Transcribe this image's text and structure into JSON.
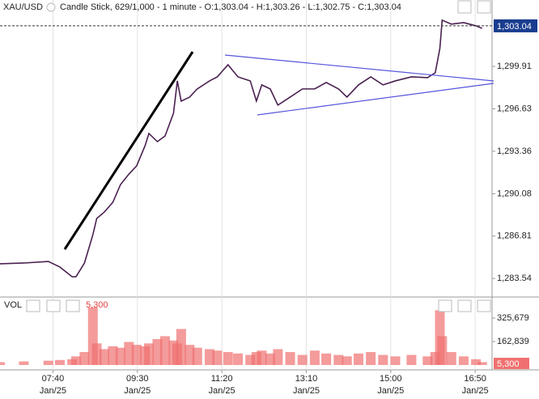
{
  "chart_data": [
    {
      "type": "line",
      "title": "XAU/USD",
      "subtitle": "Candle Stick, 629/1,000 - 1 minute - O:1,303.04 - H:1,303.26 - L:1,302.75 - C:1,303.04",
      "color": "#4a2050",
      "x": [
        391,
        422,
        454,
        469,
        485,
        490,
        501,
        512,
        517,
        527,
        538,
        548,
        559,
        569,
        580,
        585,
        596,
        606,
        617,
        622,
        627,
        638,
        648,
        664,
        674,
        688,
        701,
        717,
        725,
        732,
        743,
        753,
        769,
        785,
        801,
        816,
        832,
        843,
        858,
        874,
        890,
        906,
        927,
        948,
        958,
        964,
        967,
        979,
        995,
        1011,
        1019
      ],
      "values": [
        1284.67,
        1284.73,
        1284.85,
        1284.42,
        1283.67,
        1283.67,
        1284.73,
        1286.92,
        1288.17,
        1288.67,
        1289.42,
        1290.79,
        1291.6,
        1292.23,
        1293.79,
        1294.73,
        1294.1,
        1294.54,
        1296.29,
        1298.79,
        1297.23,
        1297.54,
        1298.17,
        1298.79,
        1299.1,
        1300.04,
        1299.1,
        1298.79,
        1297.23,
        1298.48,
        1298.17,
        1296.92,
        1297.54,
        1298.17,
        1298.17,
        1298.67,
        1298.17,
        1297.54,
        1298.48,
        1299.1,
        1298.48,
        1298.79,
        1299.1,
        1299.04,
        1299.42,
        1301.29,
        1303.48,
        1303.17,
        1303.29,
        1303.04,
        1302.85
      ],
      "xlim": [
        391,
        1032
      ],
      "ylim": [
        1282.23,
        1303.91
      ],
      "yticks": [
        {
          "value": 1283.54,
          "label": "1,283.54"
        },
        {
          "value": 1286.81,
          "label": "1,286.81"
        },
        {
          "value": 1290.08,
          "label": "1,290.08"
        },
        {
          "value": 1293.36,
          "label": "1,293.36"
        },
        {
          "value": 1296.63,
          "label": "1,296.63"
        },
        {
          "value": 1299.91,
          "label": "1,299.91"
        }
      ],
      "last_price": {
        "value": 1303.04,
        "label": "1,303.04"
      },
      "grid": true
    },
    {
      "type": "bar",
      "title": "VOL",
      "color": "#f07070",
      "x": [
        391,
        422,
        454,
        469,
        485,
        490,
        501,
        512,
        517,
        527,
        538,
        548,
        559,
        569,
        580,
        585,
        596,
        606,
        617,
        622,
        627,
        638,
        648,
        664,
        674,
        688,
        701,
        717,
        725,
        732,
        743,
        753,
        769,
        785,
        801,
        816,
        832,
        843,
        858,
        874,
        890,
        906,
        927,
        948,
        958,
        964,
        967,
        979,
        995,
        1011,
        1019
      ],
      "values": [
        20000,
        25000,
        30000,
        35000,
        40000,
        60000,
        90000,
        400000,
        150000,
        110000,
        130000,
        120000,
        160000,
        140000,
        130000,
        150000,
        180000,
        200000,
        170000,
        150000,
        250000,
        140000,
        120000,
        110000,
        100000,
        90000,
        80000,
        70000,
        90000,
        100000,
        80000,
        110000,
        90000,
        70000,
        100000,
        80000,
        70000,
        60000,
        80000,
        90000,
        70000,
        60000,
        70000,
        60000,
        90000,
        380000,
        200000,
        90000,
        60000,
        40000,
        20000
      ],
      "xlim": [
        391,
        1032
      ],
      "ylim": [
        0,
        454800
      ],
      "yticks": [
        {
          "value": 162839,
          "label": "162,839"
        },
        {
          "value": 325679,
          "label": "325,679"
        }
      ],
      "xticks": [
        {
          "value": 460,
          "label": "07:40",
          "date": "Jan/25"
        },
        {
          "value": 570,
          "label": "09:30",
          "date": "Jan/25"
        },
        {
          "value": 680,
          "label": "11:20",
          "date": "Jan/25"
        },
        {
          "value": 790,
          "label": "13:10",
          "date": "Jan/25"
        },
        {
          "value": 900,
          "label": "15:00",
          "date": "Jan/25"
        },
        {
          "value": 1010,
          "label": "16:50",
          "date": "Jan/25"
        }
      ],
      "last_value": {
        "value": 5300,
        "label": "5,300"
      }
    }
  ]
}
